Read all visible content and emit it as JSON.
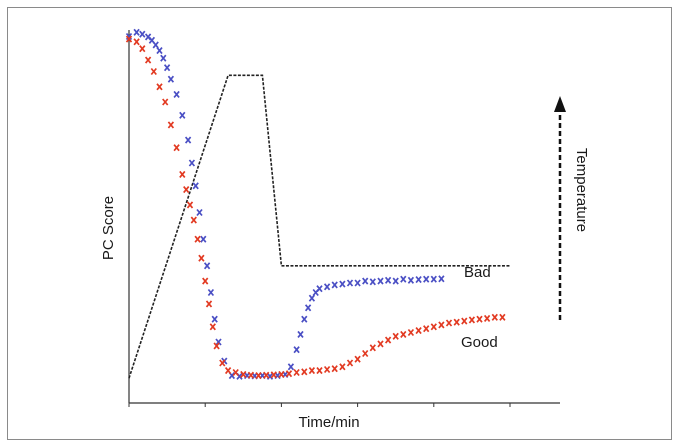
{
  "chart_data": {
    "type": "scatter",
    "xlabel": "Time/min",
    "ylabel": "PC Score",
    "secondary_ylabel": "Temperature",
    "xlim": [
      0,
      10
    ],
    "ylim": [
      0,
      10
    ],
    "x_ticks": [
      0,
      2,
      4,
      6,
      8,
      10
    ],
    "grid": false,
    "colors": {
      "Bad": "#4a4fc4",
      "Good": "#e23a22",
      "temperature": "#222222"
    },
    "temperature_profile": {
      "x": [
        0.0,
        2.6,
        3.5,
        4.0,
        10.0
      ],
      "y": [
        0.65,
        8.6,
        8.6,
        3.6,
        3.6
      ]
    },
    "series": [
      {
        "name": "Bad",
        "x": [
          0.0,
          0.2,
          0.35,
          0.5,
          0.6,
          0.7,
          0.8,
          0.9,
          1.0,
          1.1,
          1.25,
          1.4,
          1.55,
          1.65,
          1.75,
          1.85,
          1.95,
          2.05,
          2.15,
          2.25,
          2.35,
          2.5,
          2.7,
          2.9,
          3.1,
          3.3,
          3.5,
          3.7,
          3.9,
          4.1,
          4.25,
          4.4,
          4.5,
          4.6,
          4.7,
          4.8,
          4.9,
          5.0,
          5.2,
          5.4,
          5.6,
          5.8,
          6.0,
          6.2,
          6.4,
          6.6,
          6.8,
          7.0,
          7.2,
          7.4,
          7.6,
          7.8,
          8.0,
          8.2
        ],
        "y": [
          9.62,
          9.73,
          9.68,
          9.61,
          9.52,
          9.4,
          9.25,
          9.05,
          8.8,
          8.5,
          8.1,
          7.55,
          6.9,
          6.3,
          5.7,
          5.0,
          4.3,
          3.6,
          2.9,
          2.2,
          1.6,
          1.1,
          0.72,
          0.7,
          0.72,
          0.71,
          0.72,
          0.7,
          0.72,
          0.75,
          0.95,
          1.4,
          1.8,
          2.2,
          2.5,
          2.75,
          2.9,
          3.0,
          3.05,
          3.1,
          3.12,
          3.15,
          3.15,
          3.2,
          3.18,
          3.2,
          3.22,
          3.2,
          3.25,
          3.22,
          3.24,
          3.25,
          3.25,
          3.26
        ]
      },
      {
        "name": "Good",
        "x": [
          0.0,
          0.2,
          0.35,
          0.5,
          0.65,
          0.8,
          0.95,
          1.1,
          1.25,
          1.4,
          1.5,
          1.6,
          1.7,
          1.8,
          1.9,
          2.0,
          2.1,
          2.2,
          2.3,
          2.45,
          2.6,
          2.8,
          3.0,
          3.2,
          3.4,
          3.6,
          3.8,
          4.0,
          4.2,
          4.4,
          4.6,
          4.8,
          5.0,
          5.2,
          5.4,
          5.6,
          5.8,
          6.0,
          6.2,
          6.4,
          6.6,
          6.8,
          7.0,
          7.2,
          7.4,
          7.6,
          7.8,
          8.0,
          8.2,
          8.4,
          8.6,
          8.8,
          9.0,
          9.2,
          9.4,
          9.6,
          9.8
        ],
        "y": [
          9.55,
          9.48,
          9.3,
          9.0,
          8.7,
          8.3,
          7.9,
          7.3,
          6.7,
          6.0,
          5.6,
          5.2,
          4.8,
          4.3,
          3.8,
          3.2,
          2.6,
          2.0,
          1.5,
          1.05,
          0.85,
          0.8,
          0.75,
          0.73,
          0.72,
          0.73,
          0.74,
          0.75,
          0.77,
          0.8,
          0.82,
          0.85,
          0.85,
          0.88,
          0.9,
          0.95,
          1.05,
          1.15,
          1.3,
          1.45,
          1.55,
          1.65,
          1.75,
          1.8,
          1.85,
          1.9,
          1.95,
          2.0,
          2.05,
          2.1,
          2.12,
          2.15,
          2.18,
          2.2,
          2.22,
          2.25,
          2.25
        ]
      }
    ],
    "annotations": [
      {
        "text": "Bad",
        "series": "Bad"
      },
      {
        "text": "Good",
        "series": "Good"
      }
    ]
  }
}
